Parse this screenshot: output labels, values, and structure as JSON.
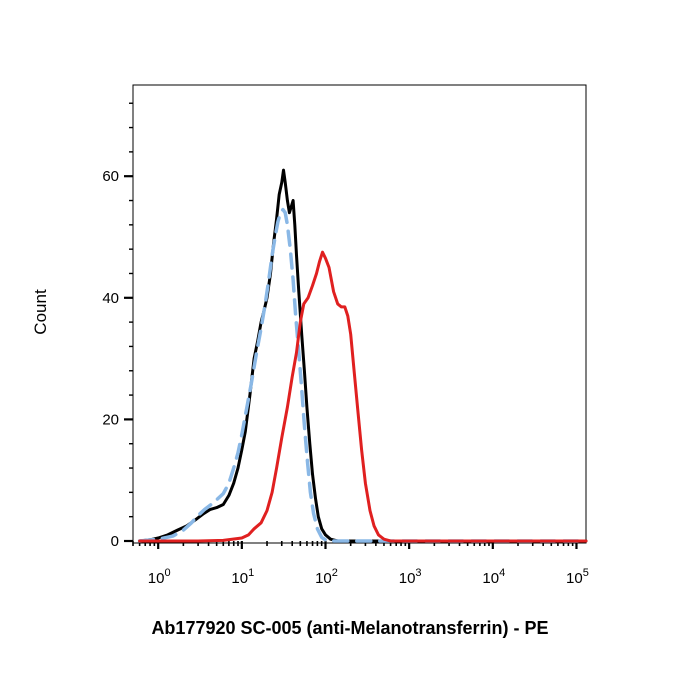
{
  "chart_data": {
    "type": "line",
    "title": "",
    "xlabel": "Ab177920 SC-005 (anti-Melanotransferrin) - PE",
    "ylabel": "Count",
    "x_scale": "log",
    "xlim": [
      0.5,
      130000
    ],
    "ylim": [
      0,
      75
    ],
    "grid": false,
    "legend": "none",
    "x_ticks": [
      {
        "base": "10",
        "exp": "0",
        "value": 1
      },
      {
        "base": "10",
        "exp": "1",
        "value": 10
      },
      {
        "base": "10",
        "exp": "2",
        "value": 100
      },
      {
        "base": "10",
        "exp": "3",
        "value": 1000
      },
      {
        "base": "10",
        "exp": "4",
        "value": 10000
      },
      {
        "base": "10",
        "exp": "5",
        "value": 100000
      }
    ],
    "y_ticks": [
      {
        "label": "0",
        "value": 0
      },
      {
        "label": "20",
        "value": 20
      },
      {
        "label": "40",
        "value": 40
      },
      {
        "label": "60",
        "value": 60
      }
    ],
    "series": [
      {
        "color": "#000000",
        "style": "solid",
        "points": [
          [
            0.6,
            0
          ],
          [
            0.8,
            0.2
          ],
          [
            1,
            0.5
          ],
          [
            1.3,
            1
          ],
          [
            1.7,
            1.8
          ],
          [
            2.2,
            2.5
          ],
          [
            2.8,
            3.5
          ],
          [
            3.5,
            4.5
          ],
          [
            4.2,
            5.2
          ],
          [
            5,
            5.5
          ],
          [
            6,
            6
          ],
          [
            7,
            7.5
          ],
          [
            8,
            9.5
          ],
          [
            9,
            12
          ],
          [
            10,
            15
          ],
          [
            11,
            18
          ],
          [
            12.5,
            24
          ],
          [
            14,
            30
          ],
          [
            15.5,
            33
          ],
          [
            17,
            36
          ],
          [
            18.5,
            38
          ],
          [
            20,
            40
          ],
          [
            22,
            44
          ],
          [
            24,
            49
          ],
          [
            26,
            53
          ],
          [
            28,
            57
          ],
          [
            30,
            59
          ],
          [
            31.5,
            61
          ],
          [
            33,
            59
          ],
          [
            35,
            56
          ],
          [
            37,
            54
          ],
          [
            39,
            55
          ],
          [
            41,
            56
          ],
          [
            43,
            52
          ],
          [
            45,
            47
          ],
          [
            48,
            41
          ],
          [
            52,
            34
          ],
          [
            56,
            28
          ],
          [
            60,
            22
          ],
          [
            65,
            16
          ],
          [
            70,
            11
          ],
          [
            76,
            7
          ],
          [
            82,
            4
          ],
          [
            90,
            2
          ],
          [
            100,
            1
          ],
          [
            115,
            0.3
          ],
          [
            140,
            0
          ],
          [
            200,
            0
          ],
          [
            1000,
            0
          ],
          [
            130000,
            0
          ]
        ]
      },
      {
        "color": "#8ab8e6",
        "style": "dashed",
        "points": [
          [
            0.6,
            0
          ],
          [
            1,
            0.3
          ],
          [
            1.5,
            0.8
          ],
          [
            2,
            1.8
          ],
          [
            2.5,
            3
          ],
          [
            3,
            4.2
          ],
          [
            3.6,
            5.2
          ],
          [
            4.3,
            6
          ],
          [
            5,
            6.8
          ],
          [
            6,
            7.8
          ],
          [
            7,
            9.5
          ],
          [
            8,
            12
          ],
          [
            9,
            14.5
          ],
          [
            10,
            17.5
          ],
          [
            11.5,
            22
          ],
          [
            13,
            26
          ],
          [
            15,
            31
          ],
          [
            17,
            35
          ],
          [
            19,
            39
          ],
          [
            21,
            43
          ],
          [
            23,
            47
          ],
          [
            25,
            50
          ],
          [
            27,
            52.5
          ],
          [
            29,
            54
          ],
          [
            31,
            54.5
          ],
          [
            33,
            54
          ],
          [
            35,
            52
          ],
          [
            38,
            48
          ],
          [
            41,
            43
          ],
          [
            44,
            37
          ],
          [
            48,
            31
          ],
          [
            52,
            25
          ],
          [
            56,
            19
          ],
          [
            61,
            13
          ],
          [
            66,
            8
          ],
          [
            72,
            4.5
          ],
          [
            80,
            2
          ],
          [
            90,
            0.6
          ],
          [
            105,
            0
          ],
          [
            130000,
            0
          ]
        ]
      },
      {
        "color": "#e02020",
        "style": "solid",
        "points": [
          [
            0.6,
            0
          ],
          [
            3,
            0
          ],
          [
            6,
            0.1
          ],
          [
            10,
            0.5
          ],
          [
            12,
            1
          ],
          [
            14,
            2
          ],
          [
            17,
            3
          ],
          [
            20,
            5
          ],
          [
            23,
            8
          ],
          [
            26,
            12
          ],
          [
            30,
            17
          ],
          [
            35,
            22
          ],
          [
            40,
            27
          ],
          [
            45,
            31
          ],
          [
            50,
            36
          ],
          [
            55,
            39
          ],
          [
            62,
            40
          ],
          [
            70,
            42
          ],
          [
            78,
            44
          ],
          [
            85,
            46
          ],
          [
            92,
            47.5
          ],
          [
            100,
            46.5
          ],
          [
            110,
            45
          ],
          [
            125,
            41
          ],
          [
            140,
            39
          ],
          [
            155,
            38.5
          ],
          [
            170,
            38.5
          ],
          [
            185,
            37
          ],
          [
            200,
            34
          ],
          [
            220,
            28
          ],
          [
            245,
            21
          ],
          [
            270,
            15
          ],
          [
            300,
            9.5
          ],
          [
            340,
            5
          ],
          [
            380,
            2.5
          ],
          [
            430,
            1
          ],
          [
            500,
            0.3
          ],
          [
            600,
            0
          ],
          [
            130000,
            0
          ]
        ]
      }
    ]
  }
}
